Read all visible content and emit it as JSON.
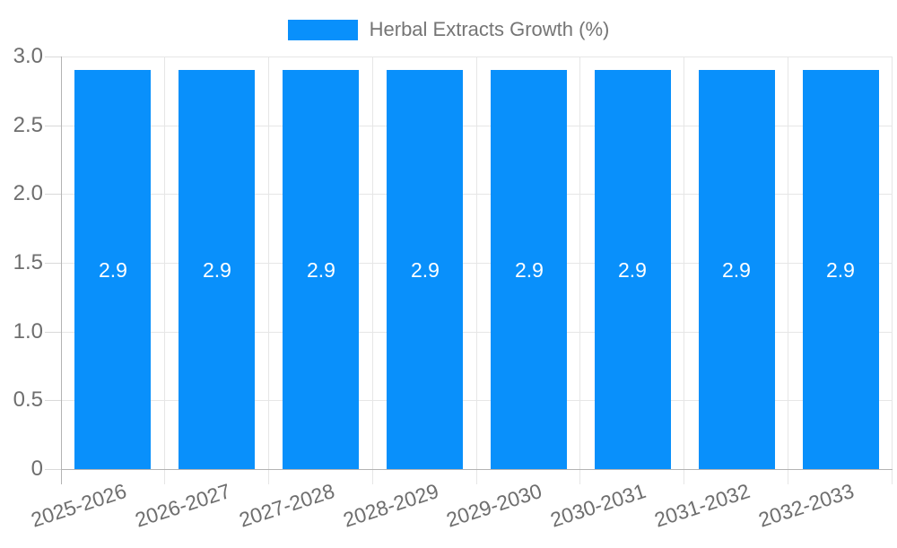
{
  "legend": {
    "label": "Herbal Extracts Growth (%)"
  },
  "chart_data": {
    "type": "bar",
    "title": "",
    "categories": [
      "2025-2026",
      "2026-2027",
      "2027-2028",
      "2028-2029",
      "2029-2030",
      "2030-2031",
      "2031-2032",
      "2032-2033"
    ],
    "series": [
      {
        "name": "Herbal Extracts Growth (%)",
        "values": [
          2.9,
          2.9,
          2.9,
          2.9,
          2.9,
          2.9,
          2.9,
          2.9
        ]
      }
    ],
    "bar_labels": [
      "2.9",
      "2.9",
      "2.9",
      "2.9",
      "2.9",
      "2.9",
      "2.9",
      "2.9"
    ],
    "xlabel": "",
    "ylabel": "",
    "ylim": [
      0,
      3.0
    ],
    "yticks": [
      "3.0",
      "2.5",
      "2.0",
      "1.5",
      "1.0",
      "0.5",
      "0"
    ],
    "grid": true,
    "legend_position": "top",
    "x_label_rotation_deg": -18,
    "colors": {
      "bar": "#0990fb",
      "bar_label": "#ffffff",
      "axis_text": "#6e6e6e",
      "legend_text": "#757575",
      "gridline": "#e6e6e6",
      "axis_line": "#b3b3b3",
      "background": "#ffffff"
    }
  }
}
